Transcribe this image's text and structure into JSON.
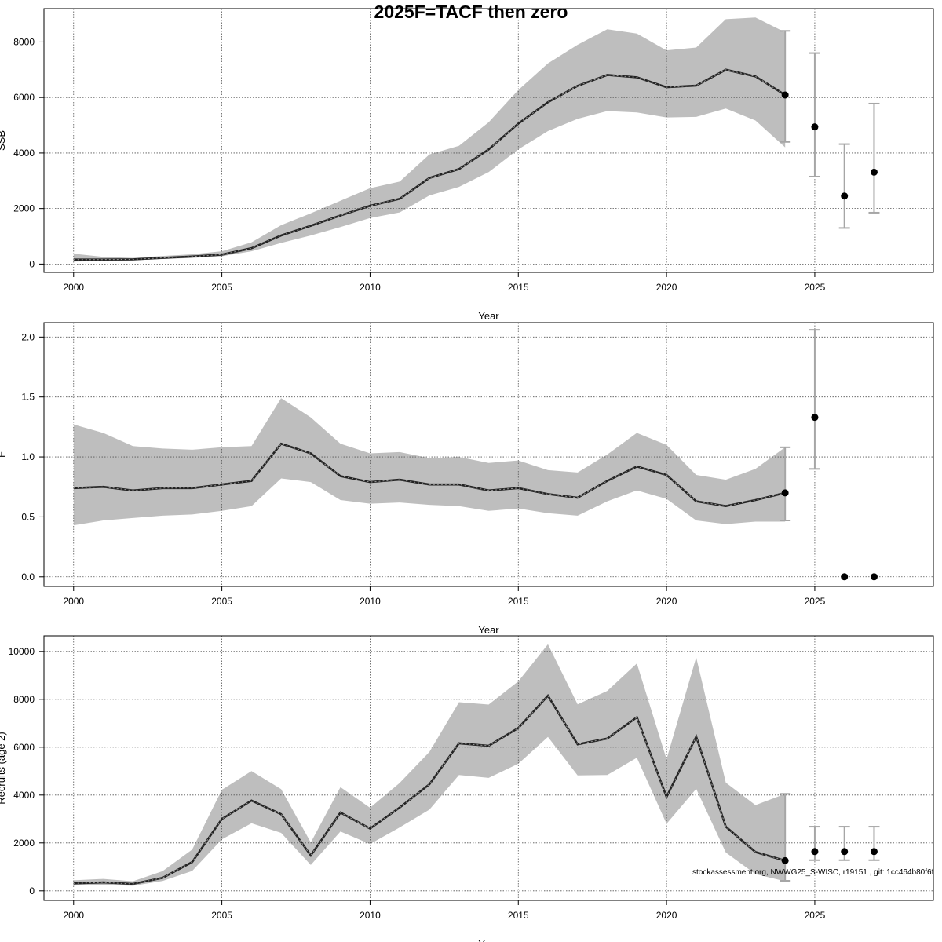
{
  "title": "2025F=TACF then zero",
  "footnote": "stockassessment.org, NWWG25_S-WISC, r19151 , git: 1cc464b80f6f",
  "colors": {
    "band": "#bebebe",
    "line": "#000000",
    "grid": "#555555",
    "errorbar": "#a6a6a6"
  },
  "chart_data": [
    {
      "type": "line",
      "xlabel": "Year",
      "ylabel": "SSB",
      "xlim": [
        1999,
        2029
      ],
      "ylim": [
        -300,
        9200
      ],
      "xticks": [
        2000,
        2005,
        2010,
        2015,
        2020,
        2025
      ],
      "yticks": [
        0,
        2000,
        4000,
        6000,
        8000
      ],
      "grid": true,
      "x": [
        2000,
        2001,
        2002,
        2003,
        2004,
        2005,
        2006,
        2007,
        2008,
        2009,
        2010,
        2011,
        2012,
        2013,
        2014,
        2015,
        2016,
        2017,
        2018,
        2019,
        2020,
        2021,
        2022,
        2023,
        2024
      ],
      "estimate": [
        160,
        160,
        170,
        220,
        270,
        340,
        570,
        1030,
        1380,
        1750,
        2100,
        2350,
        3100,
        3420,
        4130,
        5060,
        5830,
        6420,
        6810,
        6730,
        6370,
        6430,
        7000,
        6760,
        6090
      ],
      "lower": [
        90,
        110,
        130,
        180,
        220,
        280,
        460,
        760,
        1030,
        1330,
        1660,
        1860,
        2470,
        2780,
        3310,
        4130,
        4790,
        5230,
        5510,
        5460,
        5280,
        5300,
        5600,
        5170,
        4200
      ],
      "upper": [
        370,
        260,
        220,
        290,
        350,
        460,
        780,
        1400,
        1830,
        2280,
        2730,
        2970,
        3950,
        4260,
        5110,
        6270,
        7230,
        7900,
        8460,
        8300,
        7700,
        7800,
        8820,
        8880,
        8350
      ],
      "forecast": {
        "x": [
          2024,
          2025,
          2026,
          2027
        ],
        "median": [
          6090,
          4940,
          2450,
          3310
        ],
        "lower": [
          4400,
          3150,
          1300,
          1850
        ],
        "upper": [
          8400,
          7600,
          4320,
          5780
        ]
      }
    },
    {
      "type": "line",
      "xlabel": "Year",
      "ylabel": "F",
      "xlim": [
        1999,
        2029
      ],
      "ylim": [
        -0.08,
        2.12
      ],
      "xticks": [
        2000,
        2005,
        2010,
        2015,
        2020,
        2025
      ],
      "yticks": [
        0.0,
        0.5,
        1.0,
        1.5,
        2.0
      ],
      "ytick_labels": [
        "0.0",
        "0.5",
        "1.0",
        "1.5",
        "2.0"
      ],
      "grid": true,
      "x": [
        2000,
        2001,
        2002,
        2003,
        2004,
        2005,
        2006,
        2007,
        2008,
        2009,
        2010,
        2011,
        2012,
        2013,
        2014,
        2015,
        2016,
        2017,
        2018,
        2019,
        2020,
        2021,
        2022,
        2023,
        2024
      ],
      "estimate": [
        0.74,
        0.75,
        0.72,
        0.74,
        0.74,
        0.77,
        0.8,
        1.11,
        1.03,
        0.84,
        0.79,
        0.81,
        0.77,
        0.77,
        0.72,
        0.74,
        0.69,
        0.66,
        0.8,
        0.92,
        0.85,
        0.63,
        0.59,
        0.64,
        0.7
      ],
      "lower": [
        0.43,
        0.47,
        0.49,
        0.51,
        0.52,
        0.55,
        0.59,
        0.82,
        0.79,
        0.64,
        0.61,
        0.62,
        0.6,
        0.59,
        0.55,
        0.57,
        0.53,
        0.51,
        0.63,
        0.72,
        0.65,
        0.47,
        0.44,
        0.46,
        0.46
      ],
      "upper": [
        1.27,
        1.2,
        1.09,
        1.07,
        1.06,
        1.08,
        1.09,
        1.49,
        1.33,
        1.11,
        1.03,
        1.04,
        0.99,
        1.0,
        0.95,
        0.97,
        0.89,
        0.87,
        1.02,
        1.2,
        1.1,
        0.85,
        0.81,
        0.9,
        1.08
      ],
      "forecast": {
        "x": [
          2024,
          2025,
          2026,
          2027
        ],
        "median": [
          0.7,
          1.33,
          0.0,
          0.0
        ],
        "lower": [
          0.47,
          0.9,
          0.0,
          0.0
        ],
        "upper": [
          1.08,
          2.06,
          0.0,
          0.0
        ]
      }
    },
    {
      "type": "line",
      "xlabel": "Year",
      "ylabel": "Recruits (age 2)",
      "xlim": [
        1999,
        2029
      ],
      "ylim": [
        -400,
        10650
      ],
      "xticks": [
        2000,
        2005,
        2010,
        2015,
        2020,
        2025
      ],
      "yticks": [
        0,
        2000,
        4000,
        6000,
        8000,
        10000
      ],
      "grid": true,
      "x": [
        2000,
        2001,
        2002,
        2003,
        2004,
        2005,
        2006,
        2007,
        2008,
        2009,
        2010,
        2011,
        2012,
        2013,
        2014,
        2015,
        2016,
        2017,
        2018,
        2019,
        2020,
        2021,
        2022,
        2023,
        2024
      ],
      "estimate": [
        310,
        350,
        290,
        540,
        1200,
        3000,
        3770,
        3200,
        1480,
        3270,
        2600,
        3480,
        4450,
        6160,
        6060,
        6800,
        8150,
        6120,
        6360,
        7250,
        3920,
        6440,
        2680,
        1620,
        1260
      ],
      "lower": [
        220,
        250,
        210,
        410,
        830,
        2150,
        2820,
        2420,
        1080,
        2480,
        1950,
        2650,
        3390,
        4840,
        4720,
        5310,
        6430,
        4820,
        4840,
        5560,
        2800,
        4260,
        1600,
        700,
        400
      ],
      "upper": [
        440,
        500,
        400,
        820,
        1720,
        4220,
        5000,
        4250,
        2020,
        4330,
        3470,
        4510,
        5800,
        7880,
        7780,
        8750,
        10300,
        7790,
        8350,
        9500,
        5500,
        9750,
        4520,
        3580,
        4050
      ],
      "forecast": {
        "x": [
          2024,
          2025,
          2026,
          2027
        ],
        "median": [
          1260,
          1640,
          1640,
          1640
        ],
        "lower": [
          420,
          1280,
          1280,
          1280
        ],
        "upper": [
          4050,
          2680,
          2680,
          2680
        ]
      }
    }
  ]
}
